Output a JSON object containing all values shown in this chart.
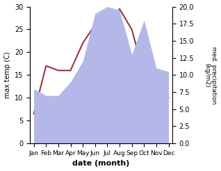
{
  "months": [
    "Jan",
    "Feb",
    "Mar",
    "Apr",
    "May",
    "Jun",
    "Jul",
    "Aug",
    "Sep",
    "Oct",
    "Nov",
    "Dec"
  ],
  "temp": [
    6.5,
    17,
    16,
    16,
    22,
    26,
    24.5,
    29.5,
    25,
    15,
    10,
    10
  ],
  "precip": [
    8,
    7,
    7,
    9,
    12,
    19,
    20,
    19.5,
    13,
    18,
    11,
    10.5
  ],
  "temp_color": "#993344",
  "precip_fill_color": "#b3b8e8",
  "ylabel_left": "max temp (C)",
  "ylabel_right": "med. precipitation\n(kg/m2)",
  "xlabel": "date (month)",
  "ylim_left": [
    0,
    30
  ],
  "ylim_right": [
    0,
    20
  ],
  "bg_color": "#ffffff"
}
